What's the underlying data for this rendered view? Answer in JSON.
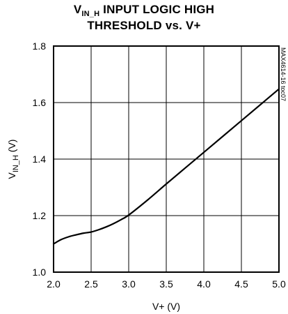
{
  "chart_data": {
    "type": "line",
    "title_prefix": "V",
    "title_subscript": "IN_H",
    "title_line1_rest": " INPUT LOGIC HIGH",
    "title_line2": "THRESHOLD vs. V+",
    "xlabel": "V+ (V)",
    "ylabel_prefix": "V",
    "ylabel_subscript": "IN_H",
    "ylabel_suffix": " (V)",
    "figure_id": "MAX4614-16 toc07",
    "xlim": [
      2.0,
      5.0
    ],
    "ylim": [
      1.0,
      1.8
    ],
    "x_ticks": [
      "2.0",
      "2.5",
      "3.0",
      "3.5",
      "4.0",
      "4.5",
      "5.0"
    ],
    "y_ticks": [
      "1.0",
      "1.2",
      "1.4",
      "1.6",
      "1.8"
    ],
    "grid": true,
    "series": [
      {
        "x": [
          2.0,
          2.1,
          2.2,
          2.3,
          2.4,
          2.5,
          2.6,
          2.7,
          2.8,
          2.9,
          3.0,
          3.25,
          3.5,
          3.75,
          4.0,
          4.25,
          4.5,
          4.75,
          5.0
        ],
        "y": [
          1.1,
          1.115,
          1.125,
          1.132,
          1.138,
          1.142,
          1.15,
          1.16,
          1.172,
          1.186,
          1.202,
          1.255,
          1.312,
          1.368,
          1.424,
          1.48,
          1.536,
          1.592,
          1.648
        ]
      }
    ]
  }
}
